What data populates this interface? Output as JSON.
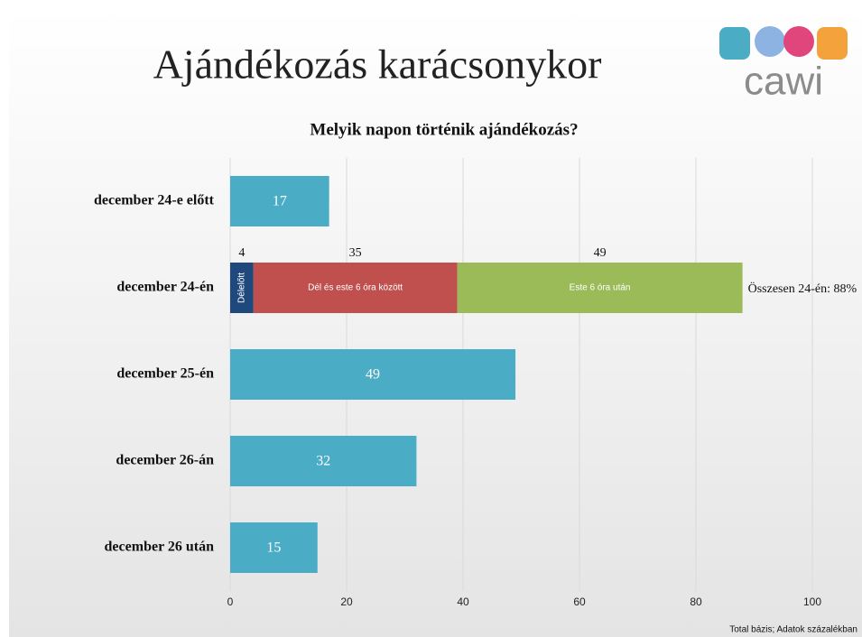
{
  "title": "Ajándékozás karácsonykor",
  "logo_text": "cawi",
  "footer": "Total bázis; Adatok százalékban",
  "chart_data": {
    "type": "bar",
    "orientation": "horizontal",
    "stacked": true,
    "title": "Melyik napon történik ajándékozás?",
    "categories": [
      "december 24-e előtt",
      "december 24-én",
      "december 25-én",
      "december 26-án",
      "december 26 után"
    ],
    "series": [
      {
        "color": "#4bacc6",
        "values": [
          17,
          null,
          49,
          32,
          15
        ]
      },
      {
        "name": "Délelőtt",
        "color": "#1f497d",
        "values": [
          null,
          4,
          null,
          null,
          null
        ]
      },
      {
        "name": "Dél és este 6 óra között",
        "color": "#c0504d",
        "values": [
          null,
          35,
          null,
          null,
          null
        ]
      },
      {
        "name": "Este 6 óra után",
        "color": "#9bbb59",
        "values": [
          null,
          49,
          null,
          null,
          null
        ]
      }
    ],
    "annotation": "Összesen 24-én: 88%",
    "xlim": [
      0,
      100
    ],
    "xticks": [
      0,
      20,
      40,
      60,
      80,
      100
    ],
    "grid": true
  }
}
